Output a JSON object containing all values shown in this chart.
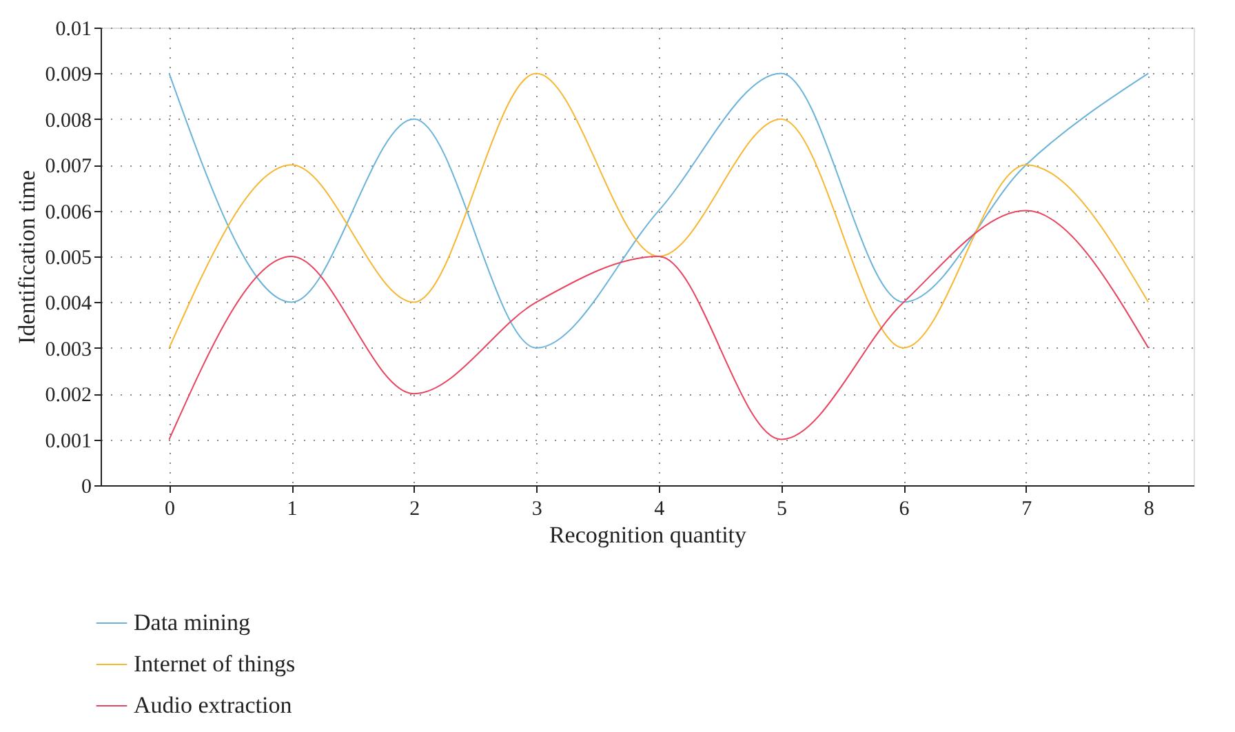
{
  "chart_data": {
    "type": "line",
    "xlabel": "Recognition quantity",
    "ylabel": "Identification time",
    "x": [
      0,
      1,
      2,
      3,
      4,
      5,
      6,
      7,
      8
    ],
    "series": [
      {
        "name": "Data mining",
        "color": "#6bb3d9",
        "values": [
          0.009,
          0.004,
          0.008,
          0.003,
          0.006,
          0.009,
          0.004,
          0.007,
          0.009
        ]
      },
      {
        "name": "Internet of things",
        "color": "#f7b733",
        "values": [
          0.003,
          0.007,
          0.004,
          0.009,
          0.005,
          0.008,
          0.003,
          0.007,
          0.004
        ]
      },
      {
        "name": "Audio extraction",
        "color": "#e8435f",
        "values": [
          0.001,
          0.005,
          0.002,
          0.004,
          0.005,
          0.001,
          0.004,
          0.006,
          0.003
        ]
      }
    ],
    "xlim": [
      -0.56,
      8.37
    ],
    "xticks": [
      0,
      1,
      2,
      3,
      4,
      5,
      6,
      7,
      8
    ],
    "ylim": [
      0,
      0.01
    ],
    "yticks": [
      0,
      0.001,
      0.002,
      0.003,
      0.004,
      0.005,
      0.006,
      0.007,
      0.008,
      0.009,
      0.01
    ],
    "grid": true,
    "legend": "bottom",
    "marker": "none",
    "line_style": "solid"
  }
}
